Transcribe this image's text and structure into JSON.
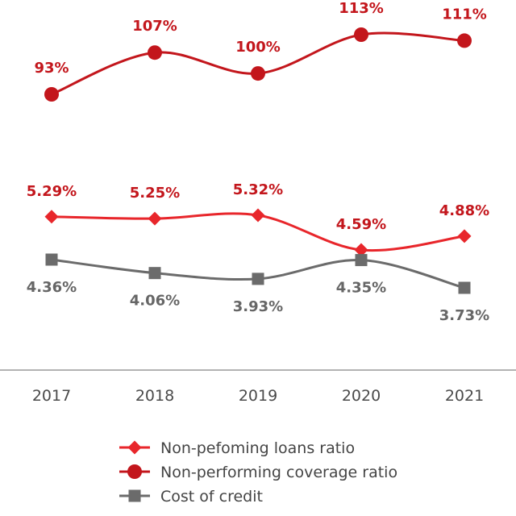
{
  "chart_data": {
    "type": "line",
    "categories": [
      "2017",
      "2018",
      "2019",
      "2020",
      "2021"
    ],
    "colors": {
      "coverage": "#c3161c",
      "npl": "#e8262b",
      "cost": "#6b6b6b"
    },
    "series": [
      {
        "key": "coverage",
        "name": "Non-performing coverage ratio",
        "marker": "circle",
        "values": [
          93,
          107,
          100,
          113,
          111
        ],
        "labels": [
          "93%",
          "107%",
          "100%",
          "113%",
          "111%"
        ]
      },
      {
        "key": "npl",
        "name": "Non-pefoming loans ratio",
        "marker": "diamond",
        "values": [
          5.29,
          5.25,
          5.32,
          4.59,
          4.88
        ],
        "labels": [
          "5.29%",
          "5.25%",
          "5.32%",
          "4.59%",
          "4.88%"
        ]
      },
      {
        "key": "cost",
        "name": "Cost of credit",
        "marker": "square",
        "values": [
          4.36,
          4.06,
          3.93,
          4.35,
          3.73
        ],
        "labels": [
          "4.36%",
          "4.06%",
          "3.93%",
          "4.35%",
          "3.73%"
        ]
      }
    ],
    "legend": [
      {
        "key": "npl",
        "label": "Non-pefoming loans ratio",
        "marker": "diamond"
      },
      {
        "key": "coverage",
        "label": "Non-performing coverage ratio",
        "marker": "circle"
      },
      {
        "key": "cost",
        "label": "Cost of credit",
        "marker": "square"
      }
    ],
    "legend_position": "bottom",
    "title": "",
    "xlabel": "",
    "ylabel": ""
  }
}
